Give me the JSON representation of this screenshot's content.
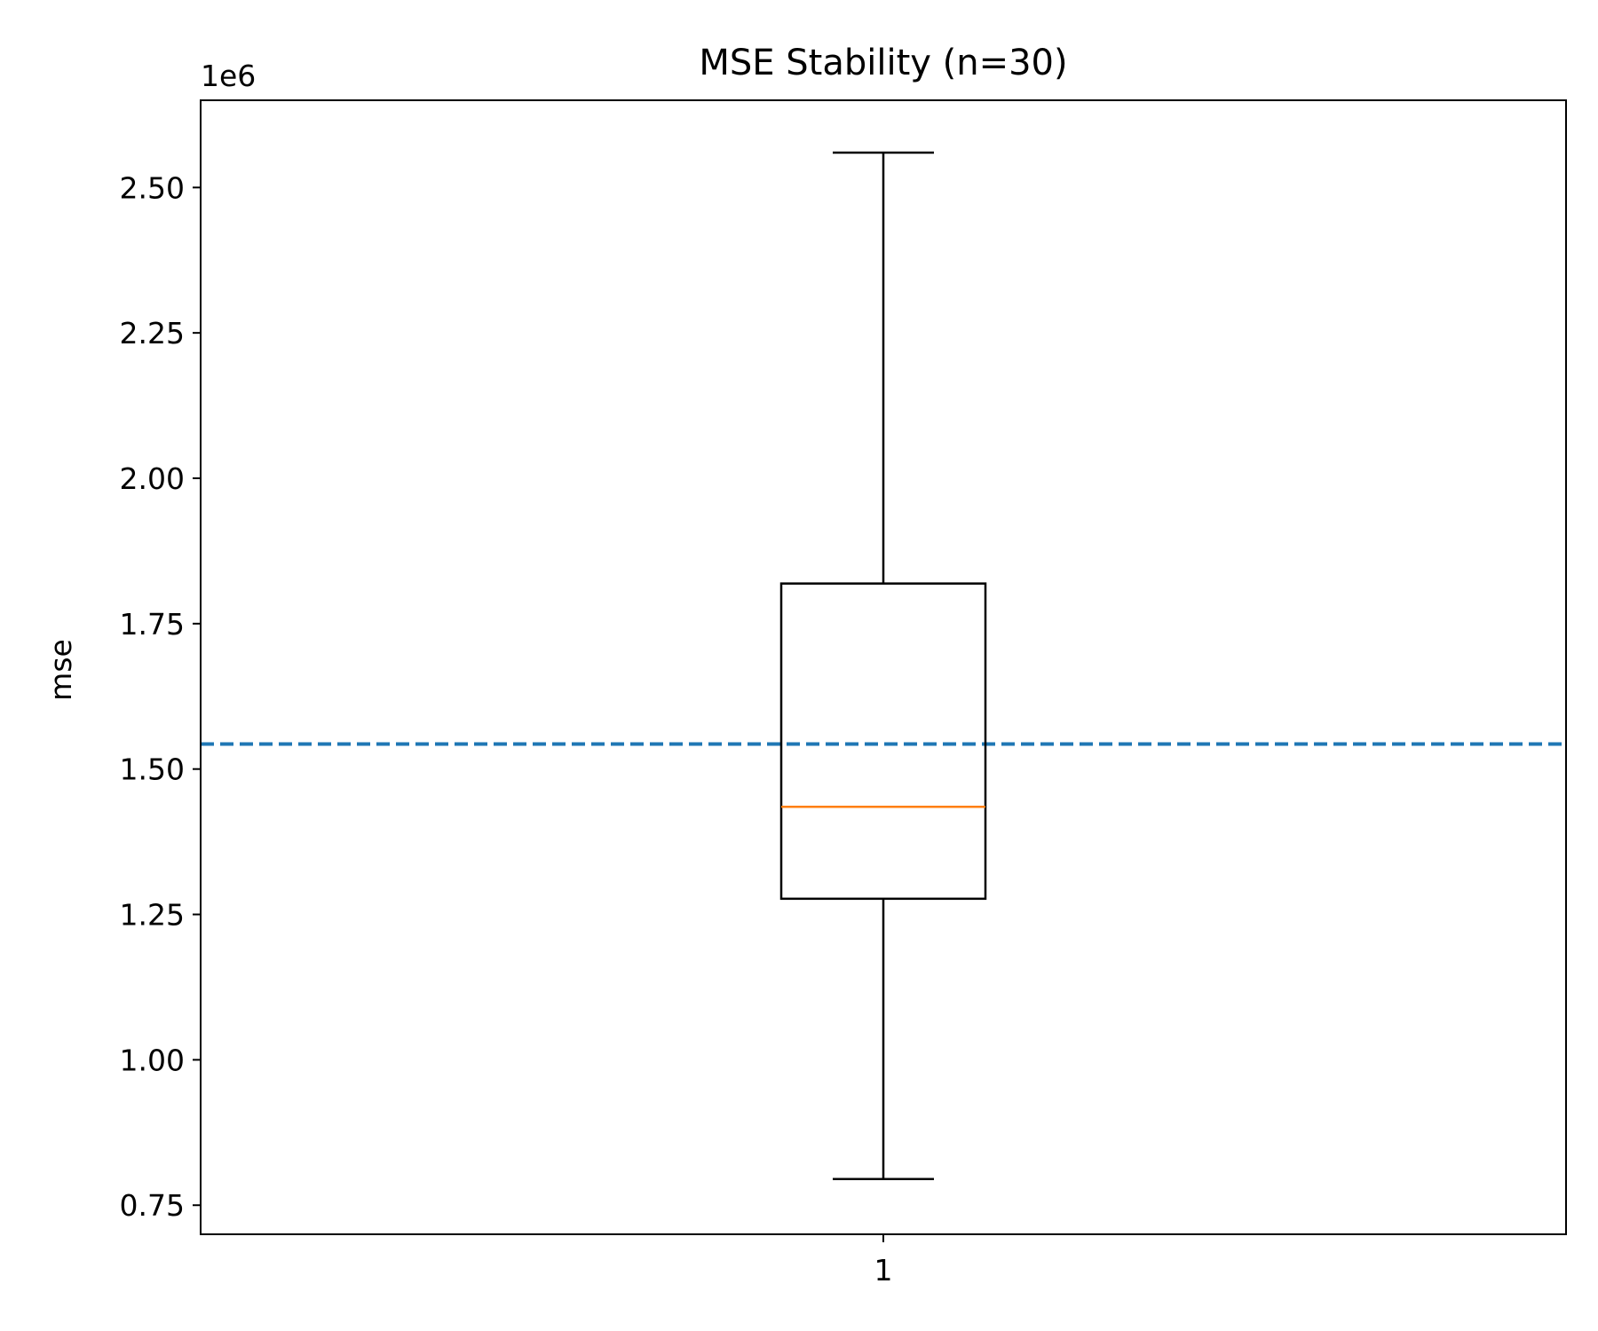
{
  "chart_data": {
    "type": "box",
    "title": "MSE Stability (n=30)",
    "xlabel": "",
    "ylabel": "mse",
    "y_offset_label": "1e6",
    "y_scale_factor": 1000000,
    "categories": [
      "1"
    ],
    "ylim": [
      0.7,
      2.65
    ],
    "yticks": [
      0.75,
      1.0,
      1.25,
      1.5,
      1.75,
      2.0,
      2.25,
      2.5
    ],
    "ytick_labels": [
      "0.75",
      "1.00",
      "1.25",
      "1.50",
      "1.75",
      "2.00",
      "2.25",
      "2.50"
    ],
    "xticks": [
      1
    ],
    "xtick_labels": [
      "1"
    ],
    "boxes": [
      {
        "category": "1",
        "whisker_low": 0.795,
        "q1": 1.277,
        "median": 1.435,
        "q3": 1.819,
        "whisker_high": 2.56
      }
    ],
    "reference_line": {
      "y": 1.543,
      "style": "dashed",
      "color": "#1f77b4"
    },
    "colors": {
      "box": "#000000",
      "median": "#ff7f0e",
      "reference": "#1f77b4"
    },
    "grid": false,
    "legend": "none"
  }
}
